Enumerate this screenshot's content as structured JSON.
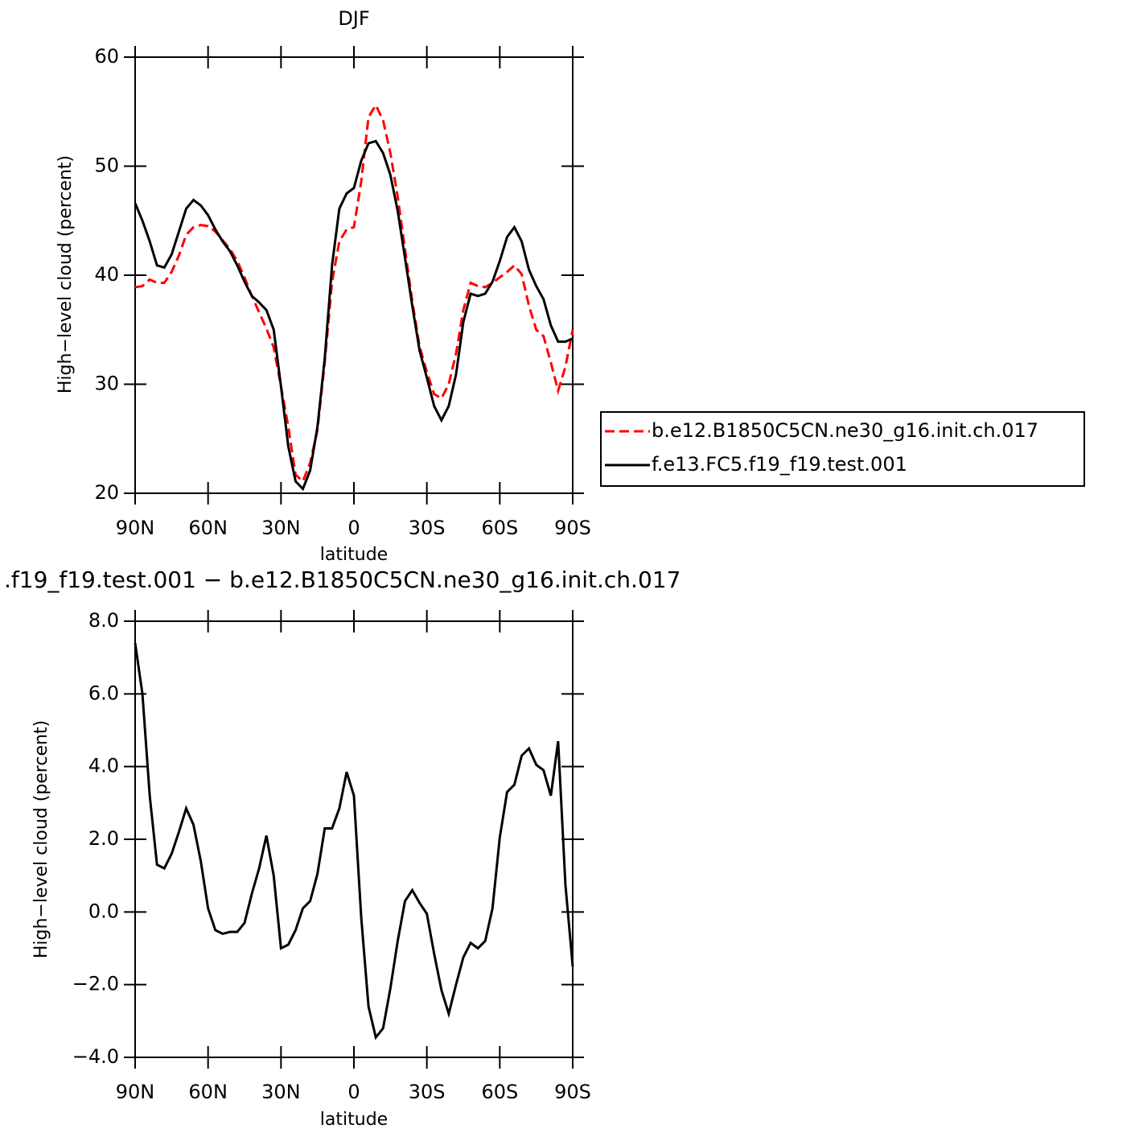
{
  "chart_data": [
    {
      "type": "line",
      "title": "DJF",
      "xlabel": "latitude",
      "ylabel": "High−level cloud (percent)",
      "x": [
        90,
        87,
        84,
        81,
        78,
        75,
        72,
        69,
        66,
        63,
        60,
        57,
        54,
        51,
        48,
        45,
        42,
        39,
        36,
        33,
        30,
        27,
        24,
        21,
        18,
        15,
        12,
        9,
        6,
        3,
        0,
        -3,
        -6,
        -9,
        -12,
        -15,
        -18,
        -21,
        -24,
        -27,
        -30,
        -33,
        -36,
        -39,
        -42,
        -45,
        -48,
        -51,
        -54,
        -57,
        -60,
        -63,
        -66,
        -69,
        -72,
        -75,
        -78,
        -81,
        -84,
        -87,
        -90
      ],
      "xlim": [
        90,
        -90
      ],
      "xticks": [
        {
          "value": 90,
          "label": "90N"
        },
        {
          "value": 60,
          "label": "60N"
        },
        {
          "value": 30,
          "label": "30N"
        },
        0,
        {
          "value": -30,
          "label": "30S"
        },
        {
          "value": -60,
          "label": "60S"
        },
        {
          "value": -90,
          "label": "90S"
        }
      ],
      "ylim": [
        20,
        60
      ],
      "yticks": [
        20,
        30,
        40,
        50,
        60
      ],
      "series": [
        {
          "name": "b.e12.B1850C5CN.ne30_g16.init.ch.017",
          "color": "#ff0000",
          "line_style": "dashed",
          "values": [
            38.9,
            39.0,
            39.6,
            39.3,
            39.3,
            40.3,
            41.8,
            43.7,
            44.4,
            44.6,
            44.5,
            44.0,
            43.2,
            42.4,
            41.3,
            39.8,
            38.1,
            36.6,
            35.1,
            33.4,
            29.8,
            26.1,
            21.7,
            21.1,
            22.8,
            25.8,
            32.0,
            39.4,
            43.1,
            44.2,
            44.4,
            48.6,
            54.5,
            55.6,
            54.2,
            51.2,
            47.2,
            42.4,
            37.6,
            33.5,
            31.1,
            29.1,
            28.7,
            30.0,
            32.8,
            36.8,
            39.3,
            39.0,
            38.9,
            39.3,
            39.8,
            40.3,
            40.9,
            40.1,
            37.2,
            35.0,
            34.4,
            32.0,
            29.4,
            31.6,
            35.0
          ]
        },
        {
          "name": "f.e13.FC5.f19_f19.test.001",
          "color": "#000000",
          "line_style": "solid",
          "values": [
            46.6,
            45.0,
            43.1,
            40.9,
            40.7,
            41.9,
            44.0,
            46.1,
            46.9,
            46.4,
            45.5,
            44.2,
            43.1,
            42.2,
            40.9,
            39.4,
            38.1,
            37.5,
            36.8,
            35.0,
            29.8,
            24.3,
            21.1,
            20.4,
            22.1,
            26.1,
            32.4,
            40.9,
            46.1,
            47.5,
            48.0,
            50.5,
            52.1,
            52.3,
            51.2,
            49.2,
            45.9,
            41.6,
            37.2,
            33.1,
            30.6,
            28.0,
            26.7,
            28.0,
            30.9,
            35.7,
            38.3,
            38.1,
            38.3,
            39.4,
            41.3,
            43.5,
            44.4,
            43.1,
            40.5,
            39.0,
            37.8,
            35.4,
            33.9,
            33.9,
            34.2
          ]
        }
      ]
    },
    {
      "type": "line",
      "title": ".f19_f19.test.001 − b.e12.B1850C5CN.ne30_g16.init.ch.017",
      "xlabel": "latitude",
      "ylabel": "High−level cloud (percent)",
      "x": [
        90,
        87,
        84,
        81,
        78,
        75,
        72,
        69,
        66,
        63,
        60,
        57,
        54,
        51,
        48,
        45,
        42,
        39,
        36,
        33,
        30,
        27,
        24,
        21,
        18,
        15,
        12,
        9,
        6,
        3,
        0,
        -3,
        -6,
        -9,
        -12,
        -15,
        -18,
        -21,
        -24,
        -27,
        -30,
        -33,
        -36,
        -39,
        -42,
        -45,
        -48,
        -51,
        -54,
        -57,
        -60,
        -63,
        -66,
        -69,
        -72,
        -75,
        -78,
        -81,
        -84,
        -87,
        -90
      ],
      "xlim": [
        90,
        -90
      ],
      "xticks": [
        {
          "value": 90,
          "label": "90N"
        },
        {
          "value": 60,
          "label": "60N"
        },
        {
          "value": 30,
          "label": "30N"
        },
        0,
        {
          "value": -30,
          "label": "30S"
        },
        {
          "value": -60,
          "label": "60S"
        },
        {
          "value": -90,
          "label": "90S"
        }
      ],
      "ylim": [
        -4,
        8
      ],
      "yticks": [
        {
          "value": -4,
          "label": "−4.0"
        },
        {
          "value": -2,
          "label": "−2.0"
        },
        {
          "value": 0,
          "label": "0.0"
        },
        {
          "value": 2,
          "label": "2.0"
        },
        {
          "value": 4,
          "label": "4.0"
        },
        {
          "value": 6,
          "label": "6.0"
        },
        {
          "value": 8,
          "label": "8.0"
        }
      ],
      "series": [
        {
          "color": "#000000",
          "line_style": "solid",
          "values": [
            7.4,
            6.0,
            3.2,
            1.3,
            1.2,
            1.6,
            2.2,
            2.85,
            2.4,
            1.4,
            0.1,
            -0.5,
            -0.6,
            -0.55,
            -0.55,
            -0.3,
            0.5,
            1.2,
            2.1,
            1.0,
            -1.0,
            -0.9,
            -0.5,
            0.1,
            0.3,
            1.05,
            2.3,
            2.3,
            2.85,
            3.85,
            3.2,
            -0.15,
            -2.6,
            -3.45,
            -3.2,
            -2.1,
            -0.8,
            0.3,
            0.6,
            0.25,
            -0.05,
            -1.15,
            -2.15,
            -2.8,
            -2.0,
            -1.25,
            -0.85,
            -1.0,
            -0.8,
            0.1,
            2.05,
            3.3,
            3.5,
            4.3,
            4.5,
            4.05,
            3.9,
            3.2,
            4.7,
            0.75,
            -1.5
          ]
        }
      ]
    }
  ]
}
